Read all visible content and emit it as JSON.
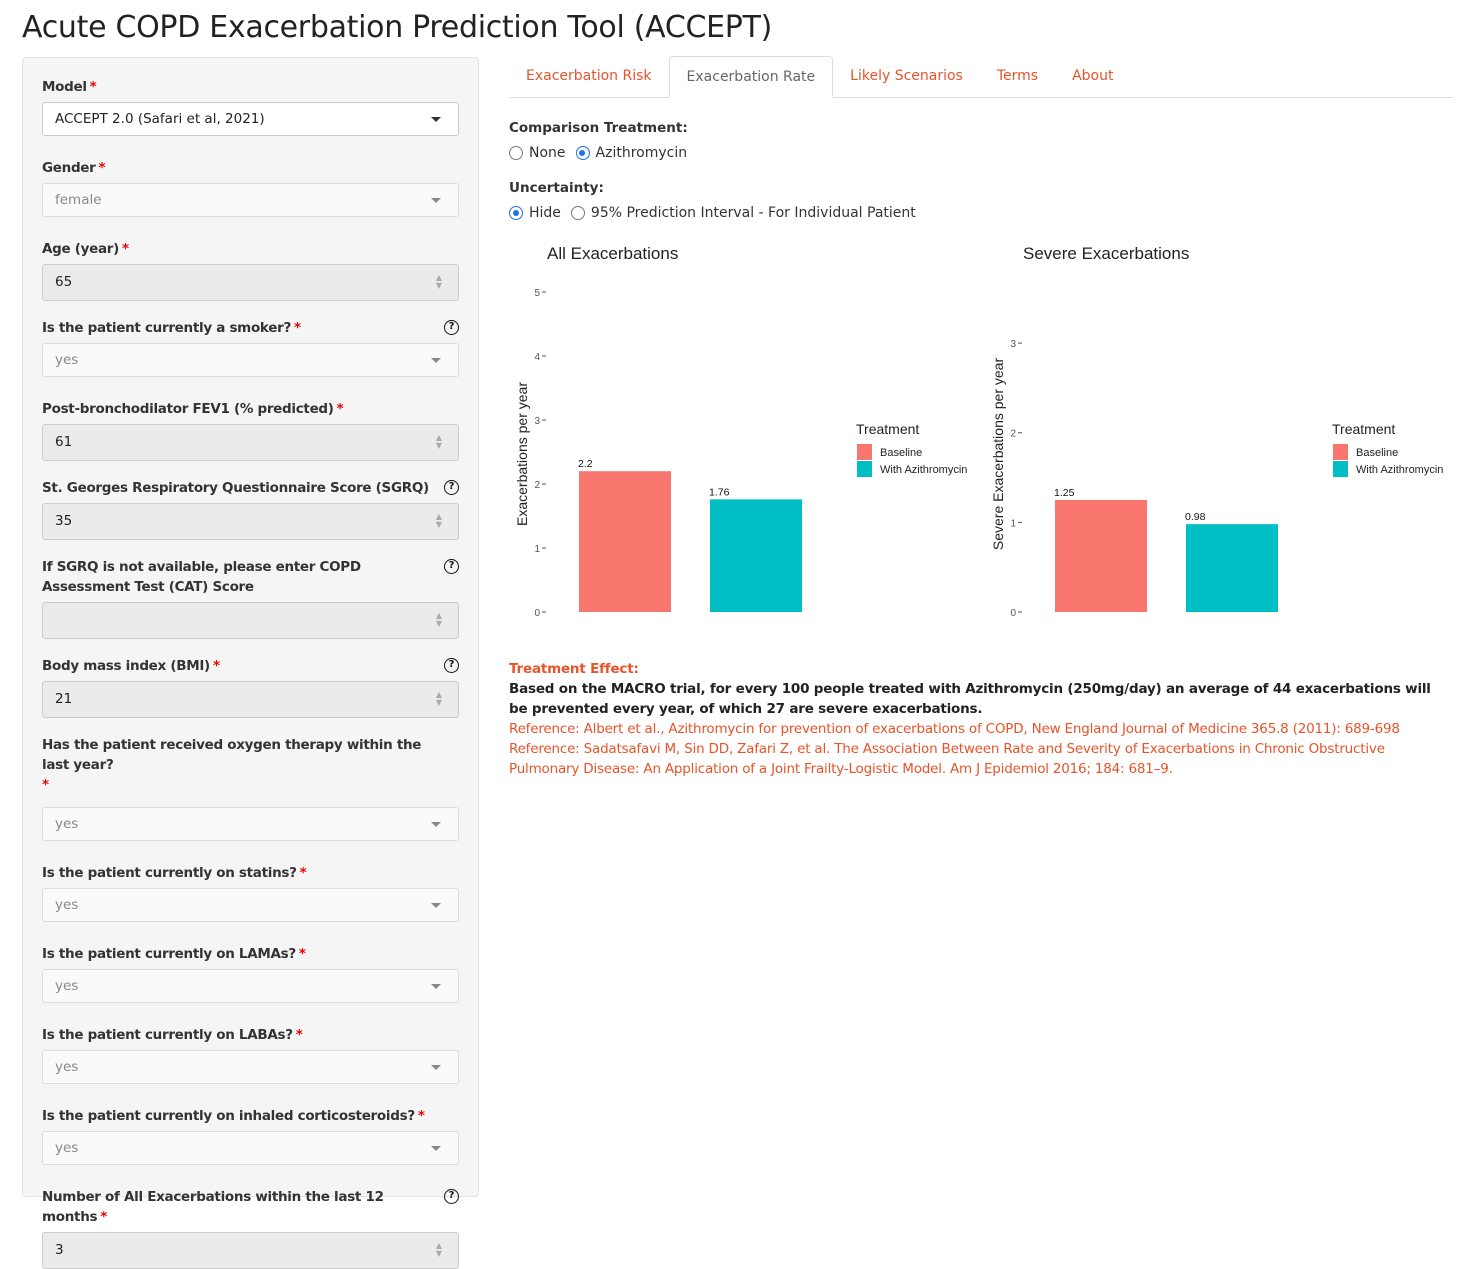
{
  "page_title": "Acute COPD Exacerbation Prediction Tool (ACCEPT)",
  "sidebar": {
    "fields": [
      {
        "label": "Model",
        "required": "*",
        "value": "ACCEPT 2.0 (Safari et al, 2021)"
      },
      {
        "label": "Gender",
        "required": "*",
        "value": "female"
      },
      {
        "label": "Age (year)",
        "required": "*",
        "value": "65"
      },
      {
        "label": "Is the patient currently a smoker?",
        "required": "*",
        "value": "yes",
        "help": "?"
      },
      {
        "label": "Post-bronchodilator FEV1 (% predicted)",
        "required": "*",
        "value": "61"
      },
      {
        "label": "St. Georges Respiratory Questionnaire Score (SGRQ)",
        "value": "35",
        "help": "?"
      },
      {
        "label": "If SGRQ is not available, please enter COPD Assessment Test (CAT) Score",
        "value": "",
        "help": "?"
      },
      {
        "label": "Body mass index (BMI)",
        "required": "*",
        "value": "21",
        "help": "?"
      },
      {
        "label": "Has the patient received oxygen therapy within the last year?",
        "required": "*",
        "value": "yes"
      },
      {
        "label": "Is the patient currently on statins?",
        "required": "*",
        "value": "yes"
      },
      {
        "label": "Is the patient currently on LAMAs?",
        "required": "*",
        "value": "yes"
      },
      {
        "label": "Is the patient currently on LABAs?",
        "required": "*",
        "value": "yes"
      },
      {
        "label": "Is the patient currently on inhaled corticosteroids?",
        "required": "*",
        "value": "yes"
      },
      {
        "label": "Number of All Exacerbations within the last 12 months",
        "required": "*",
        "value": "3",
        "help": "?"
      }
    ]
  },
  "tabs": [
    {
      "label": "Exacerbation Risk"
    },
    {
      "label": "Exacerbation Rate",
      "active": true
    },
    {
      "label": "Likely Scenarios"
    },
    {
      "label": "Terms"
    },
    {
      "label": "About"
    }
  ],
  "comparison": {
    "label": "Comparison Treatment:",
    "options": [
      "None",
      "Azithromycin"
    ],
    "selected": "Azithromycin"
  },
  "uncertainty": {
    "label": "Uncertainty:",
    "options": [
      "Hide",
      "95% Prediction Interval - For Individual Patient"
    ],
    "selected": "Hide"
  },
  "chart_data": [
    {
      "type": "bar",
      "title": "All Exacerbations",
      "ylabel": "Exacerbations per year",
      "xlabel": "",
      "categories": [
        "Baseline",
        "With Azithromycin"
      ],
      "values": [
        2.2,
        1.76
      ],
      "data_labels": [
        "2.2",
        "1.76"
      ],
      "ylim": [
        0,
        5
      ],
      "yticks": [
        0,
        1,
        2,
        3,
        4,
        5
      ],
      "grid": false,
      "legend": {
        "title": "Treatment",
        "position": "right"
      },
      "colors": [
        "#f8766d",
        "#00bfc4"
      ]
    },
    {
      "type": "bar",
      "title": "Severe Exacerbations",
      "ylabel": "Severe Exacerbations per year",
      "xlabel": "",
      "categories": [
        "Baseline",
        "With Azithromycin"
      ],
      "values": [
        1.25,
        0.98
      ],
      "data_labels": [
        "1.25",
        "0.98"
      ],
      "ylim": [
        0,
        3.57
      ],
      "yticks": [
        0,
        1,
        2,
        3
      ],
      "grid": false,
      "legend": {
        "title": "Treatment",
        "position": "right"
      },
      "colors": [
        "#f8766d",
        "#00bfc4"
      ]
    }
  ],
  "effect": {
    "title": "Treatment Effect:",
    "body": "Based on the MACRO trial, for every 100 people treated with Azithromycin (250mg/day) an average of 44 exacerbations will be prevented every year, of which 27 are severe exacerbations.",
    "ref1": "Reference: Albert et al., Azithromycin for prevention of exacerbations of COPD, New England Journal of Medicine 365.8 (2011): 689-698",
    "ref2": "Reference: Sadatsafavi M, Sin DD, Zafari Z, et al. The Association Between Rate and Severity of Exacerbations in Chronic Obstructive Pulmonary Disease: An Application of a Joint Frailty-Logistic Model. Am J Epidemiol 2016; 184: 681–9."
  },
  "colors": {
    "accent": "#e8542a",
    "radio": "#1a73e8",
    "baseline": "#f8766d",
    "treatment": "#00bfc4"
  }
}
